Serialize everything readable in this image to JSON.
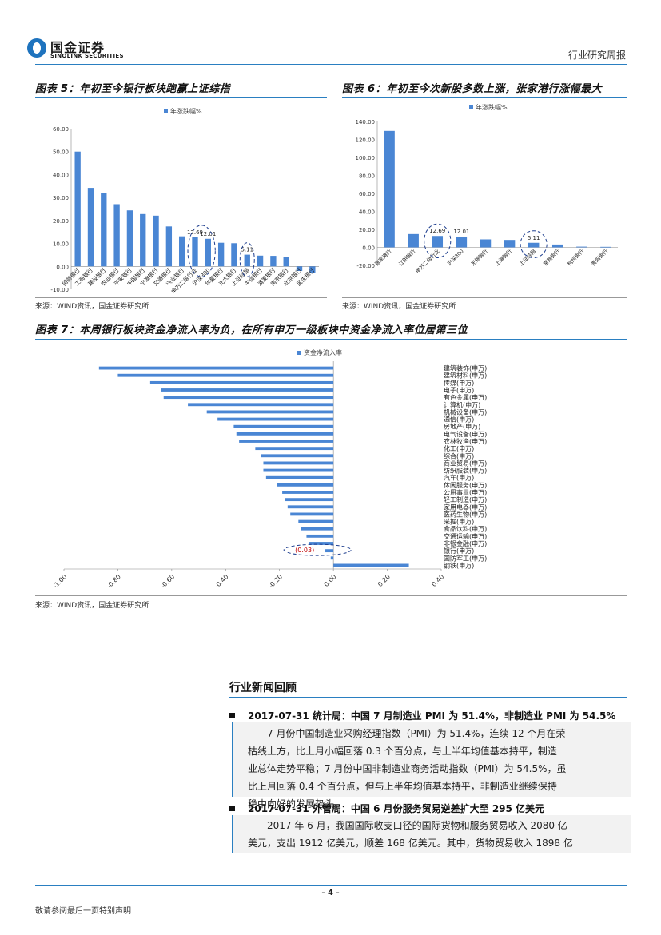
{
  "header": {
    "logo_cn": "国金证券",
    "logo_en": "SINOLINK SECURITIES",
    "report_type": "行业研究周报"
  },
  "figures": {
    "fig5": {
      "title": "图表 5：年初至今银行板块跑赢上证综指",
      "source": "来源：WIND资讯，国金证券研究所"
    },
    "fig6": {
      "title": "图表 6：年初至今次新股多数上涨，张家港行涨幅最大",
      "source": "来源：WIND资讯，国金证券研究所"
    },
    "fig7": {
      "title": "图表 7：本周银行板块资金净流入率为负，在所有申万一级板块中资金净流入率位居第三位",
      "source": "来源：WIND资讯，国金证券研究所"
    }
  },
  "chart_data": [
    {
      "type": "bar",
      "legend": "年涨跌幅%",
      "categories": [
        "招商银行",
        "工商银行",
        "建设银行",
        "农业银行",
        "平安银行",
        "中国银行",
        "宁波银行",
        "交通银行",
        "兴业银行",
        "申万二级行业",
        "沪深300",
        "华夏银行",
        "光大银行",
        "上证综指",
        "中信银行",
        "浦发银行",
        "南京银行",
        "北京银行",
        "民生银行"
      ],
      "values": [
        50.0,
        34.2,
        31.8,
        27.1,
        24.4,
        22.8,
        22.1,
        17.4,
        13.1,
        12.69,
        12.01,
        10.3,
        10.1,
        5.11,
        4.7,
        4.6,
        4.2,
        -2.0,
        -2.8
      ],
      "data_labels": {
        "9": "12.69",
        "10": "12.01",
        "13": "5.11"
      },
      "ylim": [
        -10,
        60
      ],
      "yticks": [
        "-10.00",
        "0.00",
        "10.00",
        "20.00",
        "30.00",
        "40.00",
        "50.00",
        "60.00"
      ],
      "annotations": [
        "申万二级行业 & 沪深300 circled",
        "上证综指 circled"
      ]
    },
    {
      "type": "bar",
      "legend": "年涨跌幅%",
      "categories": [
        "张家港行",
        "江阴银行",
        "申万二级行业",
        "沪深300",
        "无锡银行",
        "上海银行",
        "上证综指",
        "常熟银行",
        "杭州银行",
        "贵阳银行"
      ],
      "values": [
        129.5,
        14.8,
        12.69,
        12.01,
        8.9,
        8.3,
        5.11,
        3.2,
        0.8,
        0.6
      ],
      "data_labels": {
        "2": "12.69",
        "3": "12.01",
        "6": "5.11"
      },
      "ylim": [
        -20,
        140
      ],
      "yticks": [
        "-20.00",
        "0.00",
        "20.00",
        "40.00",
        "60.00",
        "80.00",
        "100.00",
        "120.00",
        "140.00"
      ]
    },
    {
      "type": "bar",
      "orientation": "horizontal",
      "legend": "资金净流入率",
      "categories": [
        "建筑装饰(申万)",
        "建筑材料(申万)",
        "传媒(申万)",
        "电子(申万)",
        "有色金属(申万)",
        "计算机(申万)",
        "机械设备(申万)",
        "通信(申万)",
        "房地产(申万)",
        "电气设备(申万)",
        "农林牧渔(申万)",
        "化工(申万)",
        "综合(申万)",
        "商业贸易(申万)",
        "纺织服装(申万)",
        "汽车(申万)",
        "休闲服务(申万)",
        "公用事业(申万)",
        "轻工制造(申万)",
        "家用电器(申万)",
        "医药生物(申万)",
        "采掘(申万)",
        "食品饮料(申万)",
        "交通运输(申万)",
        "非银金融(申万)",
        "银行(申万)",
        "国防军工(申万)",
        "钢铁(申万)"
      ],
      "values": [
        -0.87,
        -0.8,
        -0.68,
        -0.64,
        -0.63,
        -0.54,
        -0.47,
        -0.43,
        -0.37,
        -0.36,
        -0.35,
        -0.29,
        -0.27,
        -0.26,
        -0.26,
        -0.25,
        -0.21,
        -0.19,
        -0.18,
        -0.17,
        -0.16,
        -0.13,
        -0.12,
        -0.1,
        -0.09,
        -0.03,
        -0.01,
        0.28
      ],
      "highlight_label": "(0.03)",
      "xlim": [
        -1.0,
        0.4
      ],
      "xticks": [
        "-1.00",
        "-0.80",
        "-0.60",
        "-0.40",
        "-0.20",
        "0.00",
        "0.20",
        "0.40"
      ]
    }
  ],
  "news": {
    "section_title": "行业新闻回顾",
    "items": [
      {
        "headline": "2017-07-31  统计局：中国 7 月制造业 PMI 为 51.4%，非制造业 PMI 为 54.5%",
        "lines": [
          "7 月份中国制造业采购经理指数（PMI）为 51.4%，连续 12 个月在荣",
          "枯线上方，比上月小幅回落 0.3 个百分点，与上半年均值基本持平，制造",
          "业总体走势平稳；7 月份中国非制造业商务活动指数（PMI）为 54.5%，虽",
          "比上月回落 0.4 个百分点，但与上半年均值基本持平，非制造业继续保持",
          "稳中向好的发展势头。"
        ]
      },
      {
        "headline": "2017-07-31    外管局：中国 6 月份服务贸易逆差扩大至 295 亿美元",
        "lines": [
          "2017 年 6 月，我国国际收支口径的国际货物和服务贸易收入 2080 亿",
          "美元，支出 1912 亿美元，顺差 168 亿美元。其中，货物贸易收入 1898 亿"
        ]
      }
    ]
  },
  "footer": {
    "page_number": "- 4 -",
    "disclaimer": "敬请参阅最后一页特别声明"
  },
  "colors": {
    "accent": "#2a7fc1",
    "bar": "#4a86d4",
    "highlight": "#c00000"
  }
}
